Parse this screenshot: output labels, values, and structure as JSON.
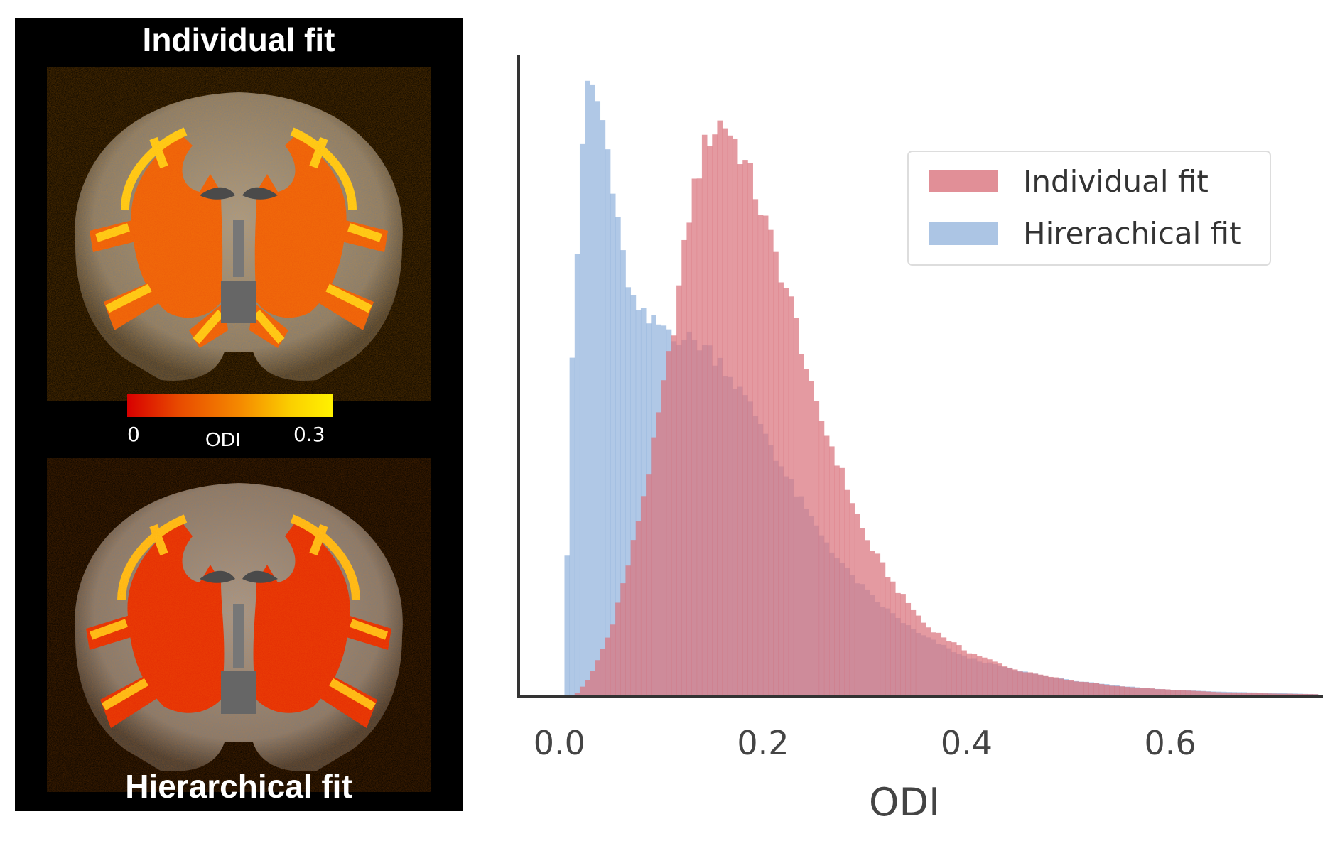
{
  "brain_panel": {
    "top_title": "Individual fit",
    "bottom_title": "Hierarchical fit",
    "colorbar": {
      "min_label": "0",
      "title": "ODI",
      "max_label": "0.3",
      "colors": [
        "#d80000",
        "#e84a00",
        "#f58a00",
        "#fbd000",
        "#fff200"
      ]
    }
  },
  "chart_data": {
    "type": "bar",
    "title": "",
    "xlabel": "ODI",
    "ylabel": "",
    "xlim": [
      -0.04,
      0.75
    ],
    "ylim": [
      0,
      1.0
    ],
    "xticks": [
      0.0,
      0.2,
      0.4,
      0.6
    ],
    "xtick_labels": [
      "0.0",
      "0.2",
      "0.4",
      "0.6"
    ],
    "bin_width": 0.005,
    "legend_position": "upper-right",
    "series": [
      {
        "name": "Individual fit",
        "color": "#d9737d",
        "curve_points": [
          [
            0.015,
            0
          ],
          [
            0.03,
            0.03
          ],
          [
            0.05,
            0.1
          ],
          [
            0.07,
            0.22
          ],
          [
            0.09,
            0.37
          ],
          [
            0.11,
            0.55
          ],
          [
            0.13,
            0.78
          ],
          [
            0.145,
            0.87
          ],
          [
            0.16,
            0.9
          ],
          [
            0.175,
            0.86
          ],
          [
            0.19,
            0.8
          ],
          [
            0.21,
            0.7
          ],
          [
            0.23,
            0.6
          ],
          [
            0.25,
            0.46
          ],
          [
            0.27,
            0.38
          ],
          [
            0.3,
            0.25
          ],
          [
            0.33,
            0.17
          ],
          [
            0.36,
            0.11
          ],
          [
            0.4,
            0.07
          ],
          [
            0.45,
            0.04
          ],
          [
            0.5,
            0.025
          ],
          [
            0.55,
            0.015
          ],
          [
            0.6,
            0.01
          ],
          [
            0.65,
            0.006
          ],
          [
            0.7,
            0.004
          ],
          [
            0.745,
            0.003
          ]
        ]
      },
      {
        "name": "Hirerachical fit",
        "color": "#7fa6d6",
        "curve_points": [
          [
            0.005,
            0
          ],
          [
            0.01,
            0.45
          ],
          [
            0.02,
            0.78
          ],
          [
            0.028,
            0.97
          ],
          [
            0.035,
            0.94
          ],
          [
            0.045,
            0.88
          ],
          [
            0.06,
            0.7
          ],
          [
            0.075,
            0.6
          ],
          [
            0.09,
            0.58
          ],
          [
            0.1,
            0.58
          ],
          [
            0.12,
            0.56
          ],
          [
            0.14,
            0.55
          ],
          [
            0.16,
            0.52
          ],
          [
            0.18,
            0.47
          ],
          [
            0.2,
            0.42
          ],
          [
            0.22,
            0.35
          ],
          [
            0.25,
            0.27
          ],
          [
            0.28,
            0.2
          ],
          [
            0.31,
            0.15
          ],
          [
            0.35,
            0.1
          ],
          [
            0.4,
            0.06
          ],
          [
            0.45,
            0.04
          ],
          [
            0.5,
            0.025
          ],
          [
            0.55,
            0.016
          ],
          [
            0.6,
            0.01
          ],
          [
            0.65,
            0.007
          ],
          [
            0.7,
            0.005
          ],
          [
            0.745,
            0.003
          ]
        ]
      }
    ]
  }
}
